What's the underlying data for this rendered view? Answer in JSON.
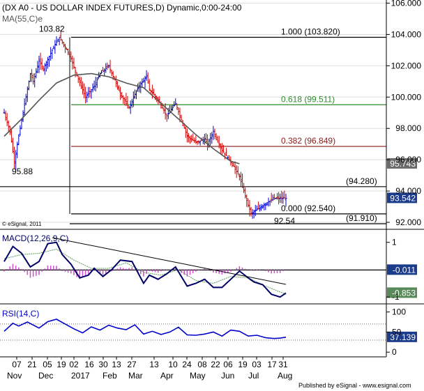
{
  "header": {
    "title": "(DX A0 - US DOLLAR INDEX FUTURES,D) Dynamic,0:00-24:00",
    "ma_label": "MA(55,C)e",
    "copyright": "© eSignal, 2011",
    "footer": "Published by eSignal - www.esignal.com"
  },
  "colors": {
    "up_bar": "#0000cc",
    "down_bar": "#cc0000",
    "ma_line": "#555555",
    "fib_618": "#2e8b2e",
    "fib_382": "#8b1a1a",
    "level": "#000000",
    "macd_line": "#000066",
    "signal_line": "#5a9a5a",
    "histogram": "#cc55cc",
    "rsi_line": "#0000cc",
    "value_box": "#1c3c8c"
  },
  "chart_data": [
    {
      "type": "line",
      "name": "price",
      "series": [
        {
          "name": "DX A0 Daily",
          "x": [
            0,
            4,
            7,
            10,
            14,
            18,
            20,
            24,
            27,
            33,
            38,
            45,
            50,
            56,
            62,
            66,
            72,
            80,
            86,
            92,
            98,
            100,
            106,
            112,
            118,
            126,
            132,
            138,
            140,
            144,
            150,
            156,
            162,
            168,
            170,
            180,
            186,
            194
          ],
          "y": [
            99.0,
            97.8,
            95.88,
            97.5,
            99.5,
            101.5,
            101.0,
            102.3,
            101.8,
            103.0,
            103.82,
            102.7,
            101.4,
            100.0,
            100.7,
            101.5,
            102.0,
            100.2,
            99.3,
            100.6,
            101.3,
            100.5,
            99.8,
            98.8,
            99.6,
            97.5,
            97.1,
            97.3,
            97.0,
            97.8,
            96.6,
            95.9,
            94.9,
            93.1,
            92.54,
            93.2,
            93.54,
            93.54
          ]
        },
        {
          "name": "MA(55,C)e",
          "x": [
            0,
            12,
            24,
            36,
            48,
            60,
            72,
            84,
            96,
            108,
            120,
            132,
            144,
            156,
            162
          ],
          "y": [
            97.5,
            98.6,
            99.8,
            100.9,
            101.4,
            101.5,
            101.3,
            100.9,
            100.6,
            99.6,
            98.6,
            97.6,
            96.7,
            95.9,
            95.743
          ]
        }
      ],
      "title": "(DX A0 - US DOLLAR INDEX FUTURES,D) Dynamic,0:00-24:00",
      "ylim": [
        91.6,
        106.2
      ],
      "y_ticks": [
        "106.000",
        "104.000",
        "102.000",
        "100.000",
        "98.000",
        "96.000",
        "94.000",
        "92.000"
      ],
      "x_ticks": [
        "07",
        "21",
        "05",
        "19",
        "02",
        "16",
        "30",
        "13",
        "27",
        "13",
        "10",
        "24",
        "08",
        "22",
        "06",
        "19",
        "03",
        "17",
        "31"
      ],
      "x_months": [
        "Nov",
        "Dec",
        "2017",
        "Feb",
        "Mar",
        "Apr",
        "May",
        "Jun",
        "Jul",
        "Aug"
      ],
      "fib_levels": [
        {
          "label": "1.000 (103.820)",
          "value": 103.82
        },
        {
          "label": "0.618 (99.511)",
          "value": 99.511
        },
        {
          "label": "0.382 (96.849)",
          "value": 96.849
        },
        {
          "label": "0.000 (92.540)",
          "value": 92.54
        }
      ],
      "horizontal_levels": [
        {
          "label": "(94.280)",
          "value": 94.28
        },
        {
          "label": "(91.910)",
          "value": 91.91
        }
      ],
      "annotations": [
        "103.82",
        "95.88",
        "92.54"
      ],
      "value_labels": [
        {
          "text": "95.743",
          "value": 95.743
        },
        {
          "text": "93.542",
          "value": 93.542
        }
      ]
    },
    {
      "type": "line",
      "name": "MACD(12,26,9,C)",
      "series": [
        {
          "name": "MACD",
          "x": [
            0,
            6,
            12,
            18,
            24,
            30,
            36,
            40,
            46,
            52,
            58,
            62,
            68,
            74,
            80,
            88,
            96,
            100,
            106,
            112,
            118,
            126,
            132,
            138,
            144,
            150,
            156,
            162,
            168,
            172,
            178,
            184,
            190,
            194
          ],
          "y": [
            0.3,
            0.85,
            0.6,
            0.1,
            0.3,
            0.95,
            1.0,
            0.55,
            0.2,
            -0.3,
            -0.2,
            0.05,
            -0.25,
            0.0,
            0.35,
            0.3,
            -0.5,
            -0.2,
            -0.35,
            -0.15,
            0.1,
            -0.6,
            -0.5,
            -0.35,
            -0.65,
            -0.65,
            -0.35,
            -0.05,
            -0.3,
            -0.45,
            -0.55,
            -0.9,
            -1.0,
            -0.853
          ]
        },
        {
          "name": "Signal",
          "x": [
            0,
            12,
            24,
            36,
            48,
            60,
            72,
            84,
            96,
            108,
            120,
            132,
            144,
            156,
            168,
            180,
            194
          ],
          "y": [
            0.4,
            0.55,
            0.6,
            0.75,
            0.35,
            0.05,
            0.05,
            0.25,
            -0.1,
            -0.2,
            0.0,
            -0.4,
            -0.5,
            -0.25,
            -0.3,
            -0.6,
            -0.9
          ]
        }
      ],
      "title": "MACD(12,26,9,C)",
      "ylim": [
        -1.2,
        1.4
      ],
      "y_ticks": [
        "1",
        "-1"
      ],
      "zero_level": -0.011,
      "value_labels": [
        {
          "text": "-0.011",
          "value": -0.011
        },
        {
          "text": "-0.853",
          "value": -0.853
        }
      ]
    },
    {
      "type": "line",
      "name": "RSI(14,C)",
      "series": [
        {
          "name": "RSI",
          "x": [
            0,
            6,
            10,
            16,
            24,
            30,
            36,
            42,
            48,
            54,
            60,
            66,
            72,
            78,
            84,
            90,
            96,
            102,
            108,
            114,
            120,
            126,
            132,
            138,
            144,
            150,
            156,
            162,
            168,
            174,
            180,
            186,
            190,
            194
          ],
          "y": [
            52,
            72,
            65,
            75,
            60,
            76,
            82,
            70,
            58,
            48,
            63,
            55,
            67,
            60,
            56,
            68,
            45,
            52,
            44,
            50,
            62,
            43,
            42,
            45,
            50,
            40,
            55,
            52,
            40,
            42,
            36,
            34,
            35,
            37.139
          ]
        }
      ],
      "title": "RSI(14,C)",
      "ylim": [
        -10,
        115
      ],
      "y_ticks": [
        "100",
        "50",
        "0"
      ],
      "dotted_levels": [
        70,
        30
      ],
      "value_labels": [
        {
          "text": "37.139",
          "value": 37.139
        }
      ]
    }
  ]
}
